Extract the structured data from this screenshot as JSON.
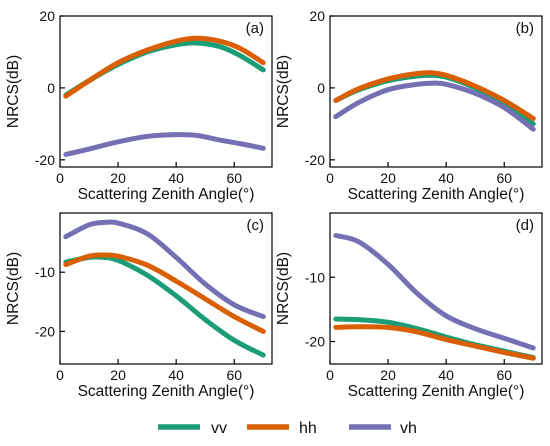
{
  "colors": {
    "vv": "#1b9e77",
    "hh": "#d95f02",
    "vh": "#7570b3"
  },
  "legend": [
    {
      "key": "vv",
      "label": "vv"
    },
    {
      "key": "hh",
      "label": "hh"
    },
    {
      "key": "vh",
      "label": "vh"
    }
  ],
  "chart_data": [
    {
      "type": "line",
      "panel_label": "(a)",
      "xlabel": "Scattering Zenith Angle(°)",
      "ylabel": "NRCS(dB)",
      "xlim": [
        0,
        73
      ],
      "ylim": [
        -22,
        20
      ],
      "xticks": [
        "0",
        "20",
        "40",
        "60"
      ],
      "yticks": [
        "-20",
        "0",
        "20"
      ],
      "x": [
        2,
        10,
        20,
        30,
        40,
        47,
        55,
        62,
        70
      ],
      "series": [
        {
          "name": "vv",
          "values": [
            -2,
            2,
            6.5,
            10,
            12,
            12.5,
            11.5,
            9,
            5
          ]
        },
        {
          "name": "hh",
          "values": [
            -2.3,
            2,
            7,
            10.5,
            13,
            13.8,
            13,
            11,
            7
          ]
        },
        {
          "name": "vh",
          "values": [
            -18.5,
            -17,
            -15,
            -13.5,
            -13,
            -13.2,
            -14.5,
            -15.5,
            -16.8
          ]
        }
      ]
    },
    {
      "type": "line",
      "panel_label": "(b)",
      "xlabel": "Scattering Zenith Angle(°)",
      "ylabel": "NRCS(dB)",
      "xlim": [
        0,
        73
      ],
      "ylim": [
        -22,
        20
      ],
      "xticks": [
        "0",
        "20",
        "40",
        "60"
      ],
      "yticks": [
        "-20",
        "0",
        "20"
      ],
      "x": [
        2,
        10,
        20,
        30,
        35,
        40,
        50,
        60,
        70
      ],
      "series": [
        {
          "name": "vv",
          "values": [
            -3.5,
            -0.5,
            2,
            3.3,
            3.5,
            3,
            0,
            -4.5,
            -10
          ]
        },
        {
          "name": "hh",
          "values": [
            -3.5,
            -0.2,
            2.5,
            4,
            4.2,
            3.5,
            0.5,
            -3.5,
            -8.5
          ]
        },
        {
          "name": "vh",
          "values": [
            -8,
            -4,
            -0.5,
            1,
            1.3,
            1,
            -1.5,
            -5.5,
            -11.5
          ]
        }
      ]
    },
    {
      "type": "line",
      "panel_label": "(c)",
      "xlabel": "Scattering Zenith Angle(°)",
      "ylabel": "NRCS(dB)",
      "xlim": [
        0,
        73
      ],
      "ylim": [
        -25.5,
        0
      ],
      "xticks": [
        "0",
        "20",
        "40",
        "60"
      ],
      "yticks": [
        "-20",
        "-10"
      ],
      "x": [
        2,
        10,
        15,
        20,
        30,
        40,
        50,
        60,
        70
      ],
      "series": [
        {
          "name": "vv",
          "values": [
            -8.3,
            -7.5,
            -7.5,
            -8,
            -10.5,
            -14,
            -18,
            -21.5,
            -24
          ]
        },
        {
          "name": "hh",
          "values": [
            -8.7,
            -7.3,
            -7.1,
            -7.3,
            -8.8,
            -11.5,
            -14.5,
            -17.5,
            -20
          ]
        },
        {
          "name": "vh",
          "values": [
            -4,
            -2,
            -1.6,
            -1.7,
            -3.5,
            -7.5,
            -12,
            -15.5,
            -17.5
          ]
        }
      ]
    },
    {
      "type": "line",
      "panel_label": "(d)",
      "xlabel": "Scattering Zenith Angle(°)",
      "ylabel": "NRCS(dB)",
      "xlim": [
        0,
        73
      ],
      "ylim": [
        -23.5,
        0
      ],
      "xticks": [
        "0",
        "20",
        "40",
        "60"
      ],
      "yticks": [
        "-20",
        "-10"
      ],
      "x": [
        2,
        10,
        20,
        30,
        40,
        50,
        60,
        70
      ],
      "series": [
        {
          "name": "vv",
          "values": [
            -16.5,
            -16.6,
            -17,
            -18,
            -19.3,
            -20.5,
            -21.5,
            -22.5
          ]
        },
        {
          "name": "hh",
          "values": [
            -17.8,
            -17.7,
            -17.8,
            -18.5,
            -19.7,
            -20.7,
            -21.7,
            -22.6
          ]
        },
        {
          "name": "vh",
          "values": [
            -3.5,
            -4.5,
            -8,
            -12.5,
            -16,
            -18,
            -19.5,
            -21
          ]
        }
      ]
    }
  ]
}
